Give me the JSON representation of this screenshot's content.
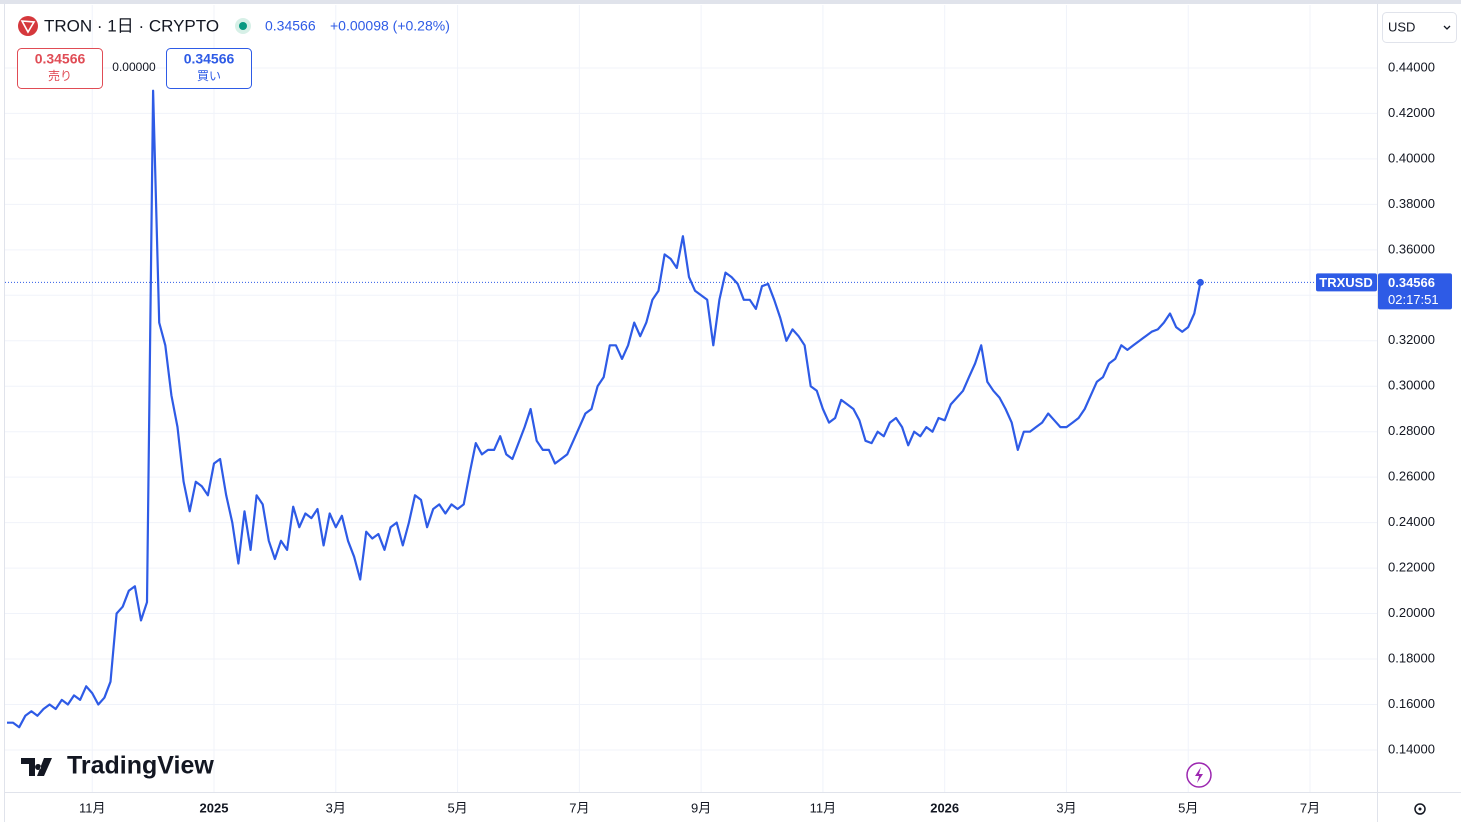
{
  "chart_data": {
    "type": "line",
    "title": "TRON · 1日 · CRYPTO",
    "price": "0.34566",
    "change": "+0.00098 (+0.28%)",
    "sell": {
      "price": "0.34566",
      "label": "売り"
    },
    "spread": "0.00000",
    "buy": {
      "price": "0.34566",
      "label": "買い"
    },
    "currency": "USD",
    "brand": "TradingView",
    "last_price": {
      "symbol": "TRXUSD",
      "value": 0.34566,
      "countdown": "02:17:51"
    },
    "color": "#2e5be6",
    "ylim": [
      0.1215,
      0.4677
    ],
    "yticks": [
      {
        "value": 0.14,
        "label": "0.14000"
      },
      {
        "value": 0.16,
        "label": "0.16000"
      },
      {
        "value": 0.18,
        "label": "0.18000"
      },
      {
        "value": 0.2,
        "label": "0.20000"
      },
      {
        "value": 0.22,
        "label": "0.22000"
      },
      {
        "value": 0.24,
        "label": "0.24000"
      },
      {
        "value": 0.26,
        "label": "0.26000"
      },
      {
        "value": 0.28,
        "label": "0.28000"
      },
      {
        "value": 0.3,
        "label": "0.30000"
      },
      {
        "value": 0.32,
        "label": "0.32000"
      },
      {
        "value": 0.34,
        "label": "0.34000"
      },
      {
        "value": 0.36,
        "label": "0.36000"
      },
      {
        "value": 0.38,
        "label": "0.38000"
      },
      {
        "value": 0.4,
        "label": "0.40000"
      },
      {
        "value": 0.42,
        "label": "0.42000"
      },
      {
        "value": 0.44,
        "label": "0.44000"
      }
    ],
    "grid": true,
    "categories": [
      null,
      null,
      null,
      null,
      null,
      null,
      null,
      null,
      null,
      null,
      null,
      null,
      null,
      null,
      "11月",
      null,
      null,
      null,
      null,
      null,
      null,
      null,
      null,
      null,
      null,
      null,
      null,
      null,
      null,
      null,
      null,
      null,
      null,
      null,
      "2025",
      null,
      null,
      null,
      null,
      null,
      null,
      null,
      null,
      null,
      null,
      null,
      null,
      null,
      null,
      null,
      null,
      null,
      null,
      null,
      "3月",
      null,
      null,
      null,
      null,
      null,
      null,
      null,
      null,
      null,
      null,
      null,
      null,
      null,
      null,
      null,
      null,
      null,
      null,
      null,
      "5月",
      null,
      null,
      null,
      null,
      null,
      null,
      null,
      null,
      null,
      null,
      null,
      null,
      null,
      null,
      null,
      null,
      null,
      null,
      null,
      "7月",
      null,
      null,
      null,
      null,
      null,
      null,
      null,
      null,
      null,
      null,
      null,
      null,
      null,
      null,
      null,
      null,
      null,
      null,
      null,
      "9月",
      null,
      null,
      null,
      null,
      null,
      null,
      null,
      null,
      null,
      null,
      null,
      null,
      null,
      null,
      null,
      null,
      null,
      null,
      null,
      "11月",
      null,
      null,
      null,
      null,
      null,
      null,
      null,
      null,
      null,
      null,
      null,
      null,
      null,
      null,
      null,
      null,
      null,
      null,
      null,
      "2026",
      null,
      null,
      null,
      null,
      null,
      null,
      null,
      null,
      null,
      null,
      null,
      null,
      null,
      null,
      null,
      null,
      null,
      null,
      null,
      "3月",
      null,
      null,
      null,
      null,
      null,
      null,
      null,
      null,
      null,
      null,
      null,
      null,
      null,
      null,
      null,
      null,
      null,
      null,
      null,
      "5月",
      null,
      null,
      null,
      null,
      null,
      null,
      null,
      null,
      null,
      null,
      null,
      null,
      null,
      null,
      null,
      null,
      null,
      null,
      null,
      "7月",
      null,
      null,
      null,
      null,
      null,
      null,
      null,
      null,
      null,
      null,
      null
    ],
    "values": [
      0.152,
      0.152,
      0.15,
      0.155,
      0.157,
      0.155,
      0.158,
      0.16,
      0.158,
      0.162,
      0.16,
      0.164,
      0.162,
      0.168,
      0.165,
      0.16,
      0.163,
      0.17,
      0.2,
      0.203,
      0.21,
      0.212,
      0.197,
      0.205,
      0.43,
      0.328,
      0.318,
      0.296,
      0.282,
      0.258,
      0.245,
      0.258,
      0.256,
      0.252,
      0.266,
      0.268,
      0.252,
      0.24,
      0.222,
      0.245,
      0.228,
      0.252,
      0.248,
      0.232,
      0.224,
      0.232,
      0.228,
      0.247,
      0.238,
      0.244,
      0.242,
      0.246,
      0.23,
      0.244,
      0.238,
      0.243,
      0.232,
      0.225,
      0.215,
      0.236,
      0.233,
      0.235,
      0.228,
      0.238,
      0.24,
      0.23,
      0.24,
      0.252,
      0.25,
      0.238,
      0.246,
      0.248,
      0.244,
      0.248,
      0.246,
      0.248,
      0.262,
      0.275,
      0.27,
      0.272,
      0.272,
      0.278,
      0.27,
      0.268,
      0.275,
      0.282,
      0.29,
      0.276,
      0.272,
      0.272,
      0.266,
      0.268,
      0.27,
      0.276,
      0.282,
      0.288,
      0.29,
      0.3,
      0.304,
      0.318,
      0.318,
      0.312,
      0.318,
      0.328,
      0.322,
      0.328,
      0.338,
      0.342,
      0.358,
      0.356,
      0.352,
      0.366,
      0.348,
      0.342,
      0.34,
      0.338,
      0.318,
      0.338,
      0.35,
      0.348,
      0.345,
      0.338,
      0.338,
      0.334,
      0.344,
      0.345,
      0.338,
      0.33,
      0.32,
      0.325,
      0.322,
      0.318,
      0.3,
      0.298,
      0.29,
      0.284,
      0.286,
      0.294,
      0.292,
      0.29,
      0.285,
      0.276,
      0.275,
      0.28,
      0.278,
      0.284,
      0.286,
      0.282,
      0.274,
      0.28,
      0.278,
      0.282,
      0.28,
      0.286,
      0.285,
      0.292,
      0.295,
      0.298,
      0.304,
      0.31,
      0.318,
      0.302,
      0.298,
      0.295,
      0.29,
      0.284,
      0.272,
      0.28,
      0.28,
      0.282,
      0.284,
      0.288,
      0.285,
      0.282,
      0.282,
      0.284,
      0.286,
      0.29,
      0.296,
      0.302,
      0.304,
      0.31,
      0.312,
      0.318,
      0.316,
      0.318,
      0.32,
      0.322,
      0.324,
      0.325,
      0.328,
      0.332,
      0.326,
      0.324,
      0.326,
      0.332,
      0.34566,
      null,
      null,
      null,
      null,
      null,
      null,
      null,
      null,
      null,
      null,
      null,
      null,
      null,
      null,
      null,
      null,
      null,
      null,
      null,
      null,
      null,
      null,
      null,
      null,
      null,
      null,
      null,
      null,
      null
    ]
  }
}
